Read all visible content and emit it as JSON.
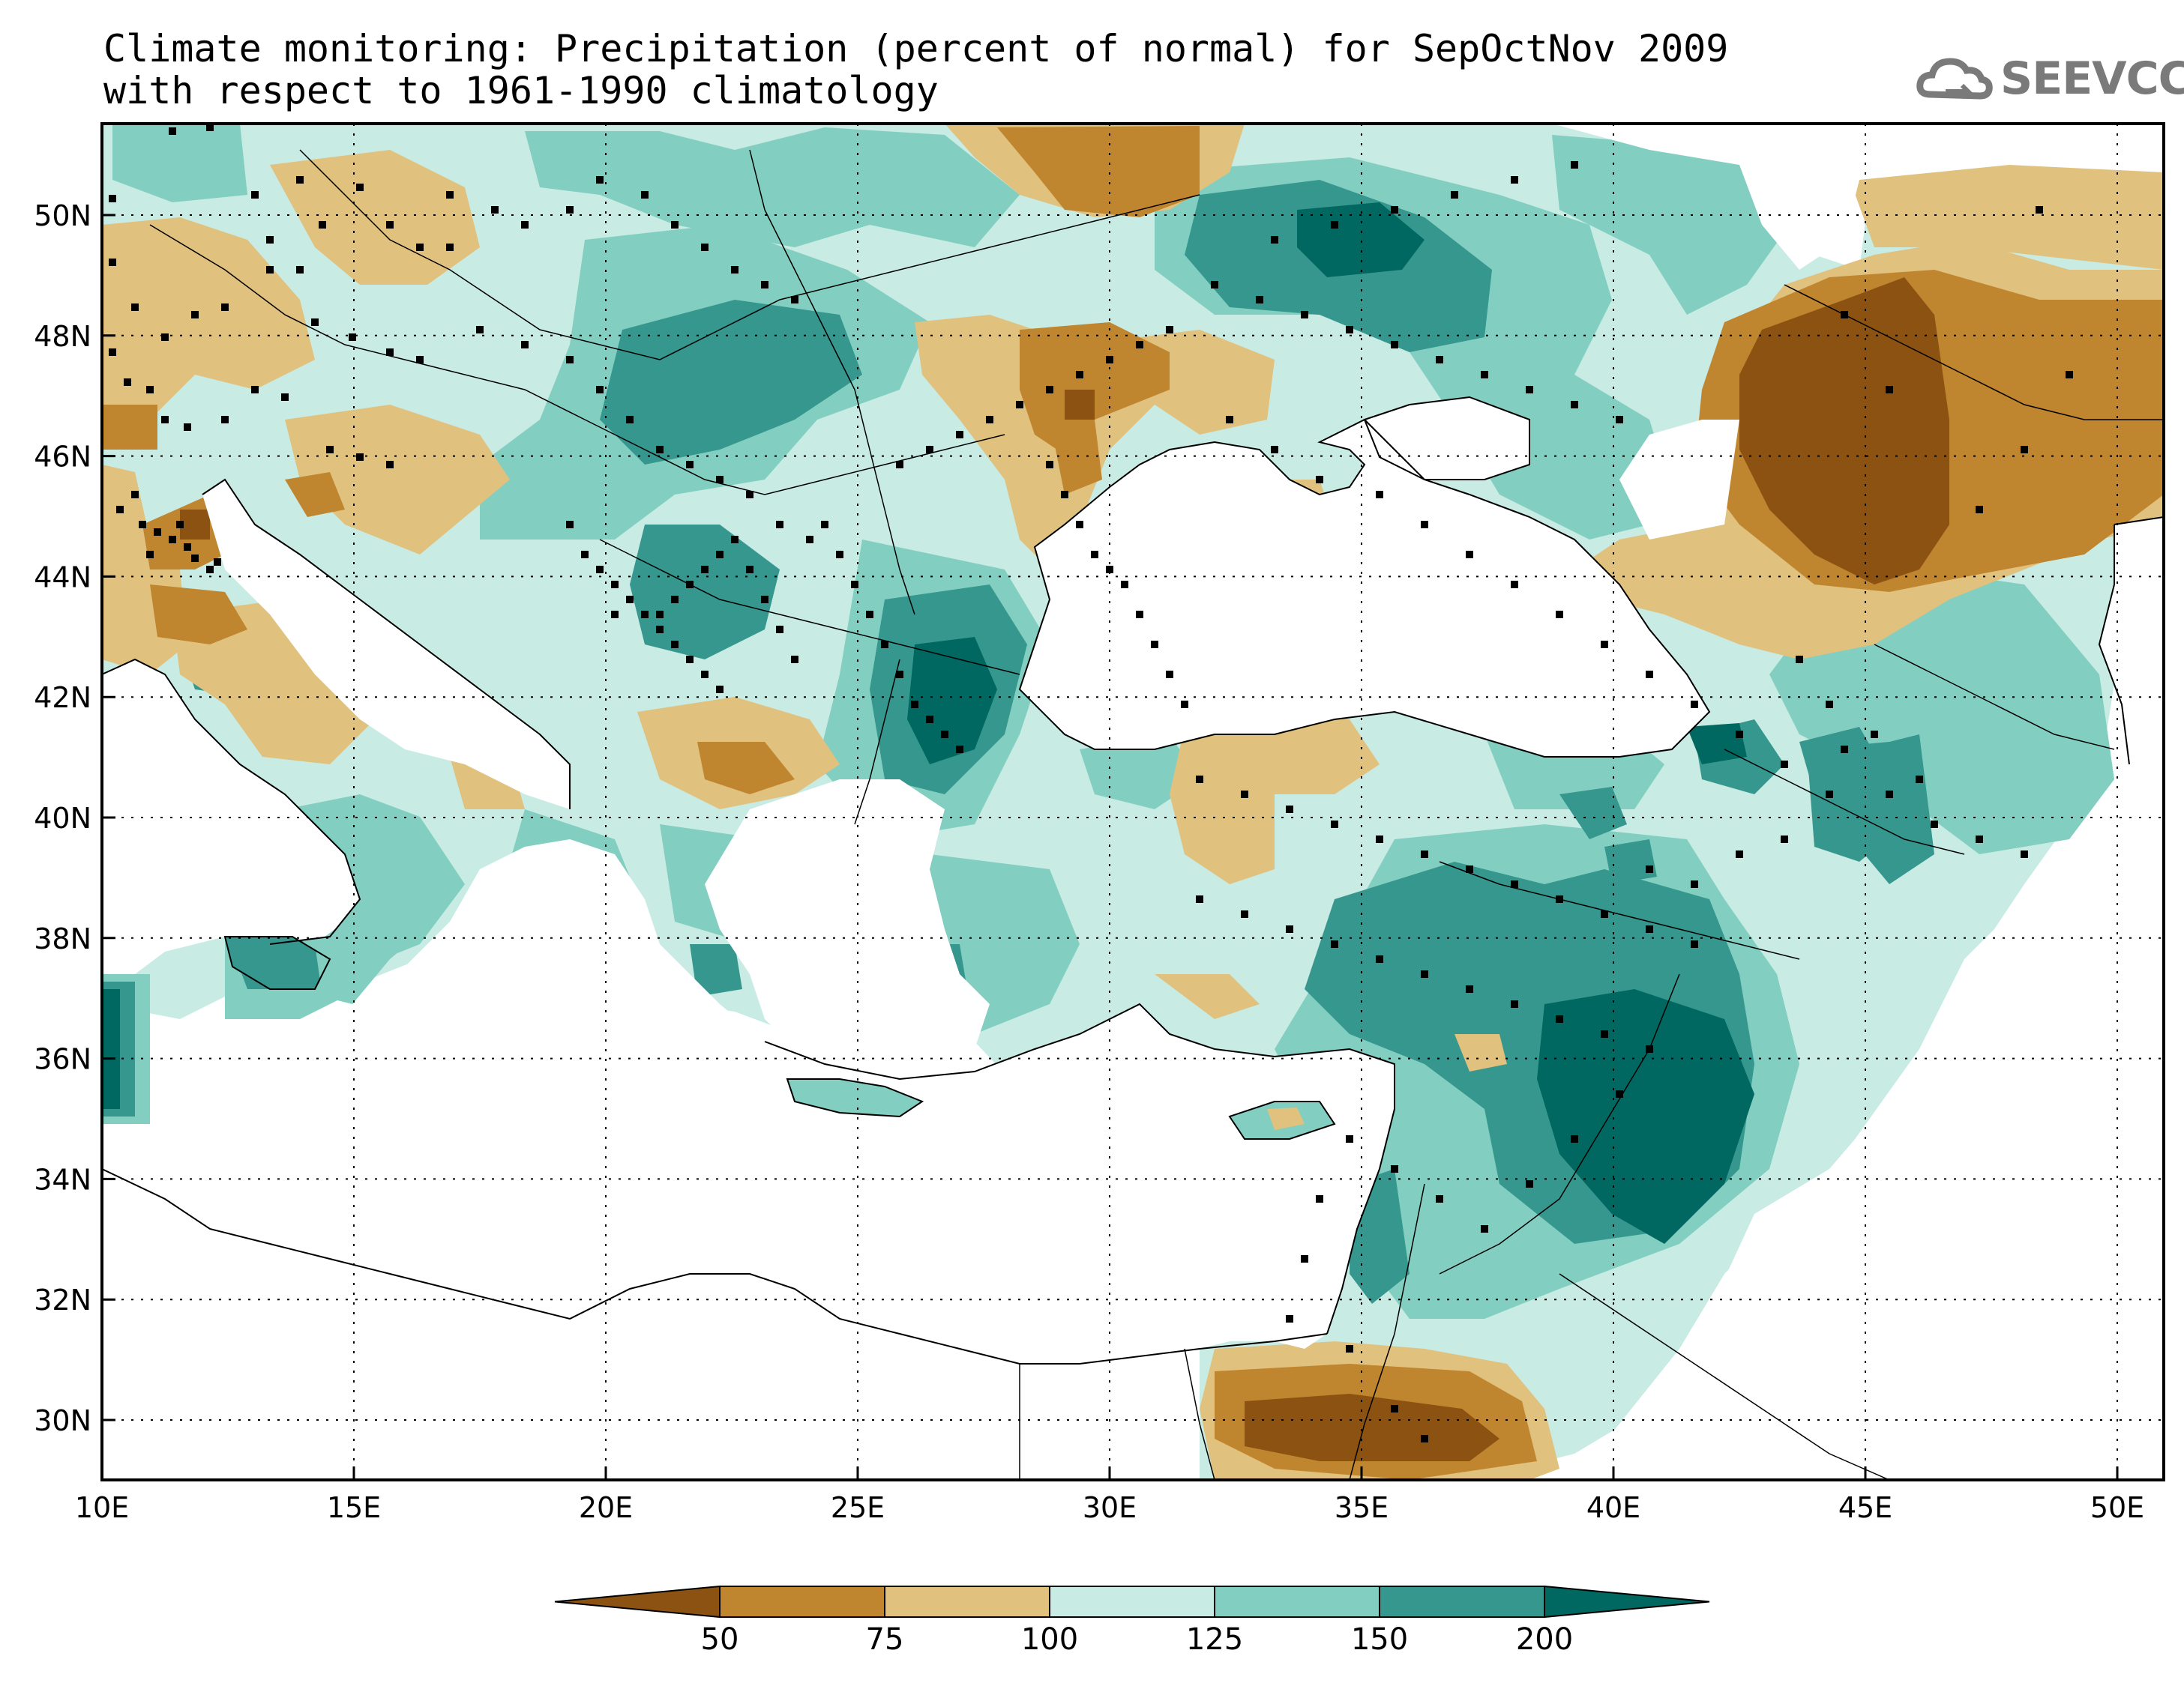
{
  "title": {
    "line1": "Climate monitoring: Precipitation (percent of normal) for SepOctNov 2009",
    "line2": "with respect to 1961-1990 climatology"
  },
  "logo": {
    "text": "SEEVCCC",
    "icon": "cloud-logo-icon"
  },
  "axes": {
    "lon_ticks": [
      "10E",
      "15E",
      "20E",
      "25E",
      "30E",
      "35E",
      "40E",
      "45E",
      "50E"
    ],
    "lat_ticks": [
      "50N",
      "48N",
      "46N",
      "44N",
      "42N",
      "40N",
      "38N",
      "36N",
      "34N",
      "32N",
      "30N"
    ]
  },
  "colorbar": {
    "labels": [
      "50",
      "75",
      "100",
      "125",
      "150",
      "200"
    ],
    "colors": [
      "#8c5212",
      "#c0852f",
      "#e0c17e",
      "#c8ebe4",
      "#82cfc1",
      "#36978e",
      "#006860"
    ]
  }
}
